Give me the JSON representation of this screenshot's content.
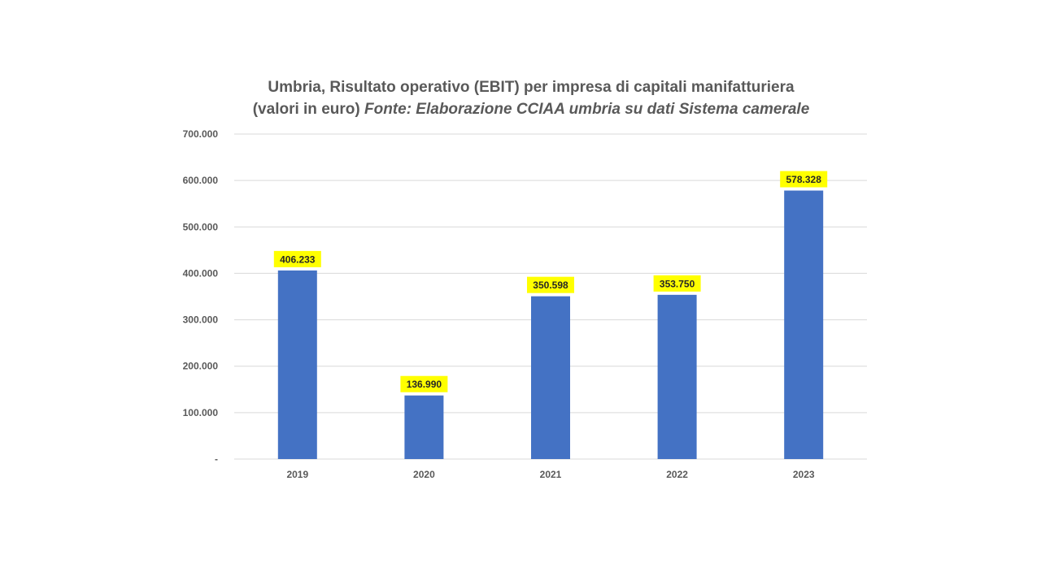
{
  "chart_data": {
    "type": "bar",
    "title_line1": "Umbria, Risultato operativo (EBIT) per impresa di capitali manifatturiera",
    "title_line2_plain": "(valori in euro)",
    "title_line2_italic": "Fonte: Elaborazione CCIAA umbria su dati Sistema camerale",
    "categories": [
      "2019",
      "2020",
      "2021",
      "2022",
      "2023"
    ],
    "values": [
      406233,
      136990,
      350598,
      353750,
      578328
    ],
    "data_labels": [
      "406.233",
      "136.990",
      "350.598",
      "353.750",
      "578.328"
    ],
    "ylim": [
      0,
      700000
    ],
    "y_ticks": [
      0,
      100000,
      200000,
      300000,
      400000,
      500000,
      600000,
      700000
    ],
    "y_tick_labels": [
      "-",
      "100.000",
      "200.000",
      "300.000",
      "400.000",
      "500.000",
      "600.000",
      "700.000"
    ],
    "grid": true,
    "legend": "none",
    "xlabel": "",
    "ylabel": "",
    "bar_color": "#4472C4",
    "label_highlight_color": "#FFFF00",
    "gridline_color": "#D9D9D9"
  }
}
